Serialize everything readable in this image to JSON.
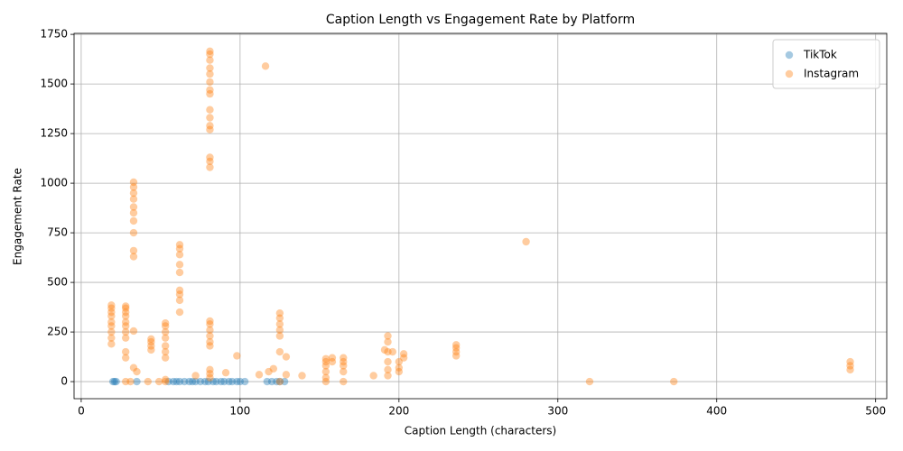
{
  "chart_data": {
    "type": "scatter",
    "title": "Caption Length vs Engagement Rate by Platform",
    "x_label": "Caption Length (characters)",
    "y_label": "Engagement Rate",
    "xlim": [
      -4.5,
      507
    ],
    "ylim": [
      -86,
      1755
    ],
    "xticks": [
      0,
      100,
      200,
      300,
      400,
      500
    ],
    "yticks": [
      0,
      250,
      500,
      750,
      1000,
      1250,
      1500,
      1750
    ],
    "grid": true,
    "legend": "upper right",
    "alpha": 0.4,
    "series": [
      {
        "name": "TikTok",
        "color": "#1f77b4",
        "x": [
          20,
          21,
          22,
          35,
          55,
          58,
          60,
          62,
          65,
          68,
          70,
          72,
          75,
          78,
          80,
          83,
          85,
          88,
          90,
          93,
          95,
          98,
          100,
          103,
          117,
          120,
          123,
          125,
          128
        ],
        "values": [
          0,
          0,
          0,
          0,
          0,
          0,
          0,
          0,
          0,
          0,
          0,
          0,
          0,
          0,
          0,
          0,
          0,
          0,
          0,
          0,
          0,
          0,
          0,
          0,
          0,
          0,
          0,
          0,
          0
        ]
      },
      {
        "name": "Instagram",
        "color": "#ff7f0e",
        "x": [
          19,
          19,
          19,
          19,
          19,
          19,
          19,
          19,
          19,
          28,
          28,
          28,
          28,
          28,
          28,
          28,
          28,
          28,
          28,
          28,
          31,
          33,
          33,
          33,
          33,
          33,
          33,
          33,
          33,
          33,
          33,
          33,
          33,
          35,
          42,
          44,
          44,
          44,
          44,
          49,
          53,
          53,
          53,
          53,
          53,
          53,
          53,
          53,
          53,
          62,
          62,
          62,
          62,
          62,
          62,
          62,
          62,
          62,
          72,
          81,
          81,
          81,
          81,
          81,
          81,
          81,
          81,
          81,
          81,
          81,
          81,
          81,
          81,
          81,
          81,
          81,
          81,
          81,
          81,
          81,
          81,
          81,
          81,
          91,
          98,
          112,
          116,
          118,
          121,
          125,
          125,
          125,
          125,
          125,
          125,
          125,
          129,
          129,
          139,
          154,
          154,
          154,
          154,
          154,
          154,
          158,
          158,
          165,
          165,
          165,
          165,
          165,
          184,
          191,
          193,
          193,
          193,
          193,
          193,
          193,
          196,
          200,
          200,
          200,
          203,
          203,
          236,
          236,
          236,
          236,
          280,
          320,
          373,
          484,
          484,
          484
        ],
        "values": [
          190,
          220,
          250,
          280,
          300,
          330,
          350,
          370,
          385,
          0,
          120,
          150,
          220,
          250,
          280,
          300,
          330,
          350,
          370,
          380,
          0,
          70,
          255,
          630,
          660,
          750,
          810,
          850,
          880,
          920,
          950,
          980,
          1005,
          50,
          0,
          160,
          180,
          200,
          215,
          0,
          0,
          10,
          120,
          150,
          180,
          220,
          250,
          280,
          295,
          350,
          410,
          440,
          460,
          550,
          590,
          640,
          670,
          690,
          30,
          20,
          40,
          60,
          180,
          200,
          230,
          260,
          290,
          305,
          1080,
          1110,
          1130,
          1270,
          1290,
          1330,
          1370,
          1450,
          1470,
          1510,
          1550,
          1580,
          1620,
          1650,
          1665,
          45,
          130,
          35,
          1590,
          50,
          65,
          0,
          150,
          230,
          260,
          290,
          320,
          345,
          35,
          125,
          30,
          0,
          20,
          50,
          80,
          100,
          115,
          100,
          120,
          0,
          50,
          80,
          100,
          120,
          30,
          160,
          30,
          60,
          100,
          150,
          200,
          230,
          150,
          50,
          70,
          100,
          120,
          140,
          130,
          150,
          170,
          185,
          705,
          0,
          0,
          60,
          80,
          100
        ]
      }
    ]
  }
}
